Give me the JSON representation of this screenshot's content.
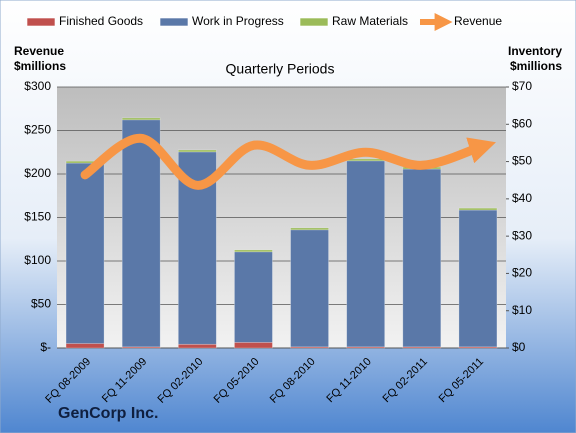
{
  "chart_data": {
    "type": "bar_line",
    "title": "Quarterly Periods",
    "ylabel": [
      "Revenue",
      "$millions"
    ],
    "y2label": [
      "Inventory",
      "$millions"
    ],
    "footer": "GenCorp Inc.",
    "categories": [
      "FQ 08-2009",
      "FQ 11-2009",
      "FQ 02-2010",
      "FQ 05-2010",
      "FQ 08-2010",
      "FQ 11-2010",
      "FQ 02-2011",
      "FQ 05-2011"
    ],
    "series": [
      {
        "name": "Finished Goods",
        "color": "#c0504d",
        "type": "bar",
        "axis": "y2",
        "values": [
          1.2,
          0.3,
          1.0,
          1.5,
          0.3,
          0.3,
          0.3,
          0.3
        ]
      },
      {
        "name": "Work in Progress",
        "color": "#5a78a8",
        "type": "bar",
        "axis": "y2",
        "values": [
          48.4,
          60.9,
          51.6,
          24.3,
          31.4,
          49.9,
          47.7,
          36.7
        ]
      },
      {
        "name": "Raw Materials",
        "color": "#9bbb59",
        "type": "bar",
        "axis": "y2",
        "values": [
          0.5,
          0.5,
          0.5,
          0.5,
          0.5,
          0.5,
          0.5,
          0.5
        ]
      },
      {
        "name": "Revenue",
        "color": "#f79646",
        "type": "line",
        "axis": "y",
        "values": [
          199,
          241,
          187,
          233,
          210,
          225,
          210,
          230
        ]
      }
    ],
    "ylim": [
      0,
      300
    ],
    "yticks": [
      {
        "value": 0,
        "label": "$-"
      },
      {
        "value": 50,
        "label": "$50"
      },
      {
        "value": 100,
        "label": "$100"
      },
      {
        "value": 150,
        "label": "$150"
      },
      {
        "value": 200,
        "label": "$200"
      },
      {
        "value": 250,
        "label": "$250"
      },
      {
        "value": 300,
        "label": "$300"
      }
    ],
    "y2lim": [
      0,
      70
    ],
    "y2ticks": [
      {
        "value": 0,
        "label": "$0"
      },
      {
        "value": 10,
        "label": "$10"
      },
      {
        "value": 20,
        "label": "$20"
      },
      {
        "value": 30,
        "label": "$30"
      },
      {
        "value": 40,
        "label": "$40"
      },
      {
        "value": 50,
        "label": "$50"
      },
      {
        "value": 60,
        "label": "$60"
      },
      {
        "value": 70,
        "label": "$70"
      }
    ],
    "grid": true
  }
}
